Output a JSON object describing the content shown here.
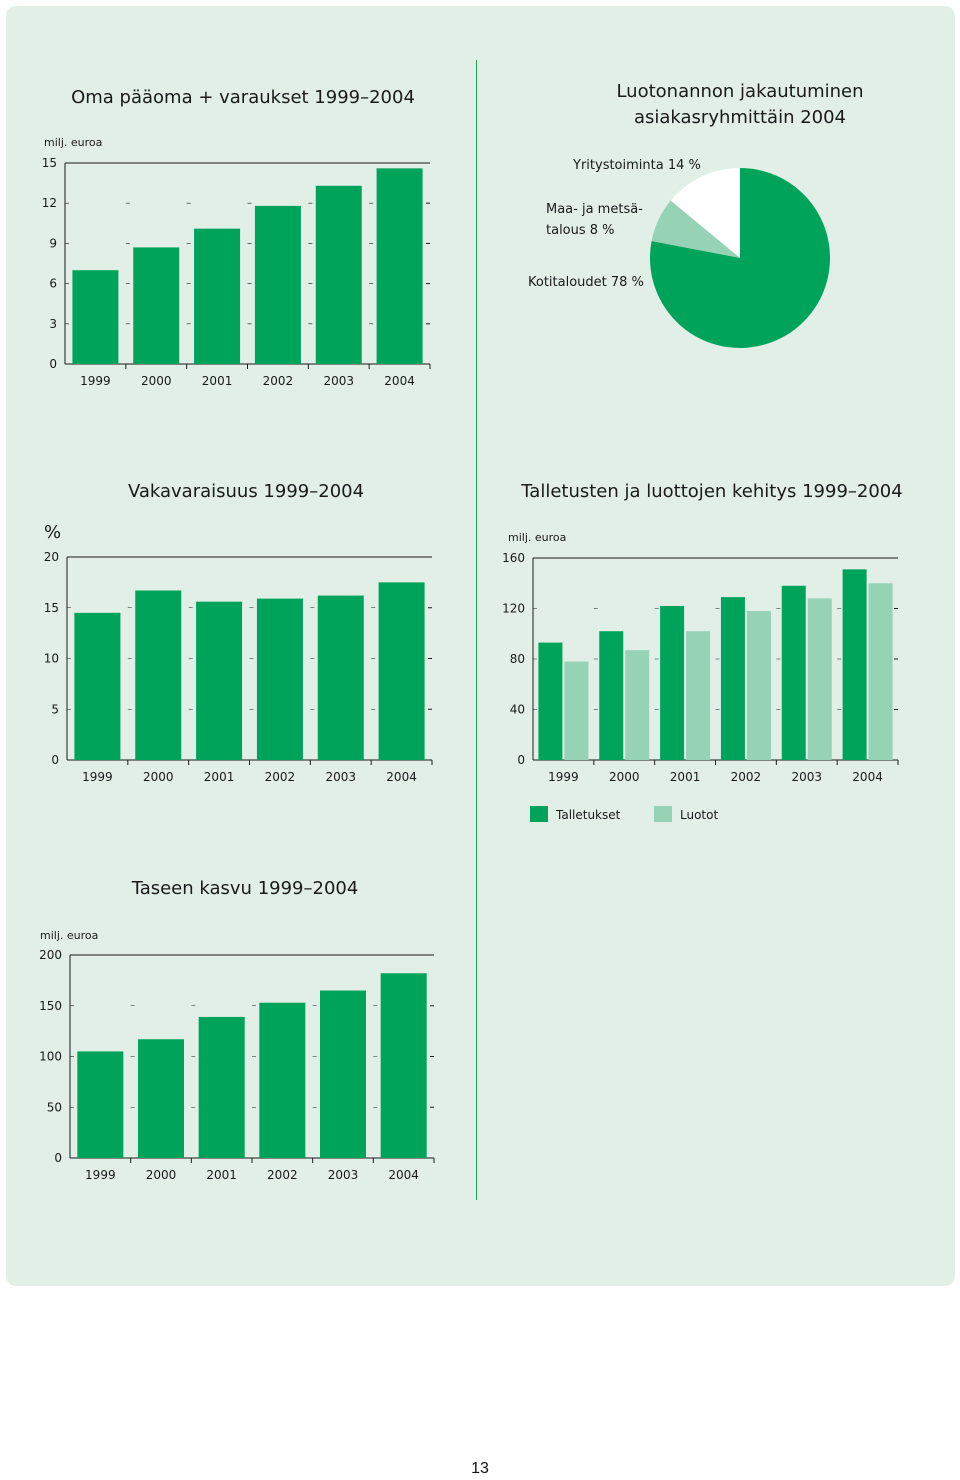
{
  "page_number": "13",
  "colors": {
    "panel": "#e1efe7",
    "dark_green": "#00a35a",
    "light_green": "#96d2b6",
    "white": "#ffffff"
  },
  "chart_data": [
    {
      "id": "oma",
      "type": "bar",
      "title": "Oma pääoma + varaukset 1999–2004",
      "unit": "milj. euroa",
      "categories": [
        "1999",
        "2000",
        "2001",
        "2002",
        "2003",
        "2004"
      ],
      "values": [
        7.0,
        8.7,
        10.1,
        11.8,
        13.3,
        14.6
      ],
      "ylim": [
        0,
        15
      ],
      "yticks": [
        "0",
        "3",
        "6",
        "9",
        "12",
        "15"
      ]
    },
    {
      "id": "luotonanto",
      "type": "pie",
      "title_lines": [
        "Luotonannon jakautuminen",
        "asiakasryhmittäin 2004"
      ],
      "slices": [
        {
          "label": "Yritystoiminta 14 %",
          "value": 14
        },
        {
          "label_lines": [
            "Maa- ja metsä-",
            "talous 8 %"
          ],
          "value": 8
        },
        {
          "label": "Kotitaloudet 78 %",
          "value": 78
        }
      ]
    },
    {
      "id": "vakavaraisuus",
      "type": "bar",
      "title": "Vakavaraisuus 1999–2004",
      "unit": "%",
      "categories": [
        "1999",
        "2000",
        "2001",
        "2002",
        "2003",
        "2004"
      ],
      "values": [
        14.5,
        16.7,
        15.6,
        15.9,
        16.2,
        17.5
      ],
      "ylim": [
        0,
        20
      ],
      "yticks": [
        "0",
        "5",
        "10",
        "15",
        "20"
      ]
    },
    {
      "id": "talletukset",
      "type": "bar",
      "title": "Talletusten ja luottojen kehitys 1999–2004",
      "unit": "milj. euroa",
      "categories": [
        "1999",
        "2000",
        "2001",
        "2002",
        "2003",
        "2004"
      ],
      "series": [
        {
          "name": "Talletukset",
          "values": [
            93,
            102,
            122,
            129,
            138,
            151
          ]
        },
        {
          "name": "Luotot",
          "values": [
            78,
            87,
            102,
            118,
            128,
            140
          ]
        }
      ],
      "ylim": [
        0,
        160
      ],
      "yticks": [
        "0",
        "40",
        "80",
        "120",
        "160"
      ]
    },
    {
      "id": "tase",
      "type": "bar",
      "title": "Taseen kasvu 1999–2004",
      "unit": "milj. euroa",
      "categories": [
        "1999",
        "2000",
        "2001",
        "2002",
        "2003",
        "2004"
      ],
      "values": [
        105,
        117,
        139,
        153,
        165,
        182
      ],
      "ylim": [
        0,
        200
      ],
      "yticks": [
        "0",
        "50",
        "100",
        "150",
        "200"
      ]
    }
  ]
}
